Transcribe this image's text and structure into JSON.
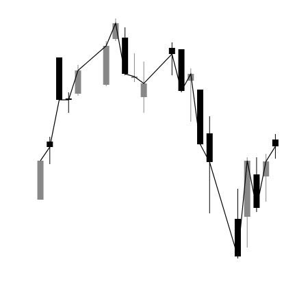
{
  "chart_data": {
    "type": "candlestick",
    "x": [
      0,
      1,
      2,
      3,
      4,
      7,
      8,
      9,
      10,
      11,
      14,
      15,
      16,
      17,
      18,
      21,
      22,
      23,
      24,
      25
    ],
    "open": [
      154,
      239,
      362,
      302,
      309,
      322,
      389,
      391,
      332,
      304,
      376,
      374,
      328,
      315,
      251,
      126,
      129,
      191,
      188,
      242
    ],
    "high": [
      211,
      246,
      362,
      311,
      351,
      386,
      419,
      406,
      368,
      356,
      384,
      374,
      346,
      315,
      276,
      170,
      216,
      216,
      221,
      250
    ],
    "low": [
      154,
      206,
      300,
      281,
      306,
      320,
      386,
      336,
      326,
      281,
      336,
      311,
      268,
      234,
      134,
      68,
      84,
      136,
      151,
      214
    ],
    "close": [
      211,
      231,
      300,
      300,
      343,
      379,
      412,
      338,
      334,
      324,
      367,
      313,
      338,
      235,
      209,
      71,
      211,
      142,
      210,
      232
    ],
    "xlim": [
      -4.3,
      27.3
    ],
    "ylim": [
      0,
      446
    ],
    "up_color": "#888888",
    "down_color": "#000000",
    "line_color": "#000000"
  }
}
